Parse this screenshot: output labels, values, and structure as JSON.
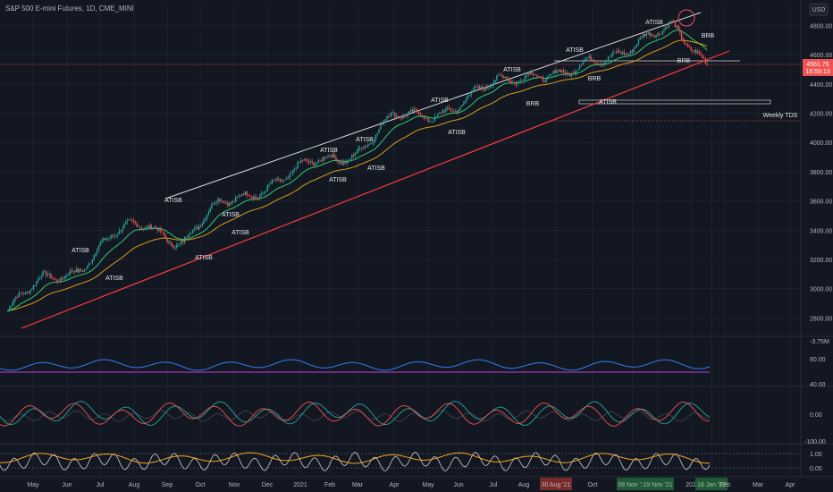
{
  "header": {
    "title": "S&P 500 E-mini Futures, 1D, CME_MINI",
    "currency": "USD"
  },
  "colors": {
    "background": "#131722",
    "grid": "#1e2230",
    "up": "#26a69a",
    "down": "#ef5350",
    "trend_white": "#d9d9d9",
    "trend_red": "#ff3b3b",
    "ema_fast": "#2ecc71",
    "ema_slow": "#d4a017",
    "osc_blue": "#2f80ed",
    "osc_purple": "#c040e0",
    "osc_orange": "#f5a623"
  },
  "price_panel": {
    "current_price": "4561.75",
    "countdown": "16:59:13",
    "weekly_tds_label": "Weekly TDS",
    "ylim": [
      2600,
      4950
    ],
    "y_ticks": [
      "4800.00",
      "4600.00",
      "4400.00",
      "4200.00",
      "4000.00",
      "3800.00",
      "3600.00",
      "3400.00",
      "3200.00",
      "3000.00",
      "2800.00"
    ],
    "annotations": {
      "atisb": [
        "ATISB",
        "ATISB",
        "ATISB",
        "ATISB",
        "ATISB",
        "ATISB",
        "ATISB",
        "ATISB",
        "ATISB",
        "ATISB",
        "ATISB",
        "ATISB",
        "ATISB",
        "ATISB",
        "ATISB",
        "ATISB"
      ],
      "brb": [
        "BRB",
        "BRB",
        "BRB",
        "BRB"
      ]
    }
  },
  "osc1": {
    "ticks": [
      "-3.75M",
      "60.00",
      "40.00"
    ]
  },
  "osc2": {
    "ticks": [
      "0.00",
      "-100.00"
    ]
  },
  "osc3": {
    "ticks": [
      "1.00",
      "0.00"
    ]
  },
  "x_axis": {
    "labels": [
      "May",
      "Jun",
      "Jul",
      "Aug",
      "Sep",
      "Oct",
      "Nov",
      "Dec",
      "2021",
      "Feb",
      "Mar",
      "Apr",
      "May",
      "Jun",
      "Jul",
      "Aug",
      "30 Aug '21",
      "Oct",
      "08 Nov '21",
      "19 Nov '21",
      "202",
      "18 Jan '22",
      "Feb",
      "Mar",
      "Apr"
    ]
  },
  "chart_data": {
    "type": "candlestick",
    "title": "S&P 500 E-mini Futures, 1D, CME_MINI",
    "x": [
      "2020-05",
      "2020-06",
      "2020-07",
      "2020-08",
      "2020-09",
      "2020-10",
      "2020-11",
      "2020-12",
      "2021-01",
      "2021-02",
      "2021-03",
      "2021-04",
      "2021-05",
      "2021-06",
      "2021-07",
      "2021-08",
      "2021-09",
      "2021-10",
      "2021-11",
      "2021-12",
      "2022-01"
    ],
    "series": [
      {
        "values": [
          2850,
          3050,
          3150,
          3350,
          3450,
          3320,
          3550,
          3680,
          3760,
          3880,
          3950,
          4150,
          4200,
          4270,
          4400,
          4500,
          4440,
          4580,
          4700,
          4760,
          4560
        ]
      }
    ],
    "ylim": [
      2600,
      4950
    ],
    "grid": true
  }
}
